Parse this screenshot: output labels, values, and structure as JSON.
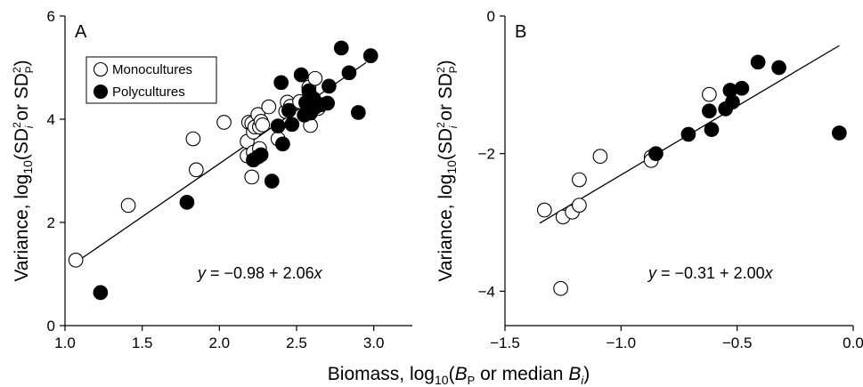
{
  "chart_data": [
    {
      "type": "scatter",
      "panel_label": "A",
      "ylabel": "Variance, log10(SD²i or SD²P)",
      "xlim": [
        1.0,
        3.25
      ],
      "ylim": [
        0,
        6
      ],
      "xticks": [
        "1.0",
        "1.5",
        "2.0",
        "2.5",
        "3.0"
      ],
      "yticks": [
        "0",
        "2",
        "4",
        "6"
      ],
      "legend": {
        "position": "top-left",
        "entries": [
          "Monocultures",
          "Polycultures"
        ]
      },
      "equation": "y = −0.98 + 2.06x",
      "fit_line": {
        "intercept": -0.98,
        "slope": 2.06,
        "x_range": [
          1.07,
          2.95
        ]
      },
      "series": [
        {
          "name": "Monocultures",
          "marker": "open",
          "points": [
            [
              1.07,
              1.27
            ],
            [
              1.41,
              2.33
            ],
            [
              1.83,
              3.62
            ],
            [
              1.85,
              3.02
            ],
            [
              2.03,
              3.94
            ],
            [
              2.18,
              3.29
            ],
            [
              2.18,
              3.57
            ],
            [
              2.19,
              3.94
            ],
            [
              2.21,
              3.92
            ],
            [
              2.21,
              2.88
            ],
            [
              2.22,
              3.36
            ],
            [
              2.22,
              3.75
            ],
            [
              2.23,
              3.85
            ],
            [
              2.25,
              4.09
            ],
            [
              2.26,
              3.43
            ],
            [
              2.26,
              3.85
            ],
            [
              2.27,
              3.96
            ],
            [
              2.28,
              3.89
            ],
            [
              2.32,
              4.24
            ],
            [
              2.38,
              3.62
            ],
            [
              2.43,
              4.15
            ],
            [
              2.44,
              4.33
            ],
            [
              2.46,
              4.25
            ],
            [
              2.52,
              4.34
            ],
            [
              2.58,
              4.62
            ],
            [
              2.59,
              3.88
            ],
            [
              2.62,
              4.79
            ],
            [
              2.64,
              4.21
            ]
          ]
        },
        {
          "name": "Polycultures",
          "marker": "filled",
          "points": [
            [
              1.23,
              0.64
            ],
            [
              1.79,
              2.39
            ],
            [
              2.22,
              3.21
            ],
            [
              2.25,
              3.27
            ],
            [
              2.27,
              3.31
            ],
            [
              2.34,
              2.8
            ],
            [
              2.38,
              3.87
            ],
            [
              2.4,
              4.71
            ],
            [
              2.41,
              3.52
            ],
            [
              2.45,
              4.17
            ],
            [
              2.47,
              3.9
            ],
            [
              2.53,
              4.86
            ],
            [
              2.55,
              4.08
            ],
            [
              2.56,
              4.32
            ],
            [
              2.58,
              4.55
            ],
            [
              2.59,
              4.12
            ],
            [
              2.61,
              4.4
            ],
            [
              2.62,
              4.23
            ],
            [
              2.66,
              4.28
            ],
            [
              2.7,
              4.31
            ],
            [
              2.71,
              4.64
            ],
            [
              2.79,
              5.38
            ],
            [
              2.84,
              4.9
            ],
            [
              2.9,
              4.13
            ],
            [
              2.98,
              5.23
            ]
          ]
        }
      ]
    },
    {
      "type": "scatter",
      "panel_label": "B",
      "ylabel": "Variance, log10(SD²i or SD²P)",
      "xlim": [
        -1.5,
        0.0
      ],
      "ylim": [
        -4.5,
        0
      ],
      "xticks": [
        "−1.5",
        "−1.0",
        "−0.5",
        "0.0"
      ],
      "yticks": [
        "−4",
        "−2",
        "0"
      ],
      "equation": "y = −0.31 + 2.00x",
      "fit_line": {
        "intercept": -0.31,
        "slope": 2.0,
        "x_range": [
          -1.35,
          -0.06
        ]
      },
      "series": [
        {
          "name": "Monocultures",
          "marker": "open",
          "points": [
            [
              -1.33,
              -2.82
            ],
            [
              -1.26,
              -3.96
            ],
            [
              -1.25,
              -2.92
            ],
            [
              -1.21,
              -2.85
            ],
            [
              -1.18,
              -2.75
            ],
            [
              -1.18,
              -2.38
            ],
            [
              -1.09,
              -2.04
            ],
            [
              -0.87,
              -2.05
            ],
            [
              -0.87,
              -2.1
            ],
            [
              -0.62,
              -1.14
            ]
          ]
        },
        {
          "name": "Polycultures",
          "marker": "filled",
          "points": [
            [
              -0.85,
              -2.0
            ],
            [
              -0.71,
              -1.72
            ],
            [
              -0.62,
              -1.38
            ],
            [
              -0.61,
              -1.65
            ],
            [
              -0.55,
              -1.35
            ],
            [
              -0.53,
              -1.08
            ],
            [
              -0.52,
              -1.25
            ],
            [
              -0.48,
              -1.05
            ],
            [
              -0.41,
              -0.67
            ],
            [
              -0.32,
              -0.75
            ],
            [
              -0.06,
              -1.7
            ]
          ]
        }
      ]
    }
  ],
  "xlabel": "Biomass, log10(BP or median Bi)"
}
